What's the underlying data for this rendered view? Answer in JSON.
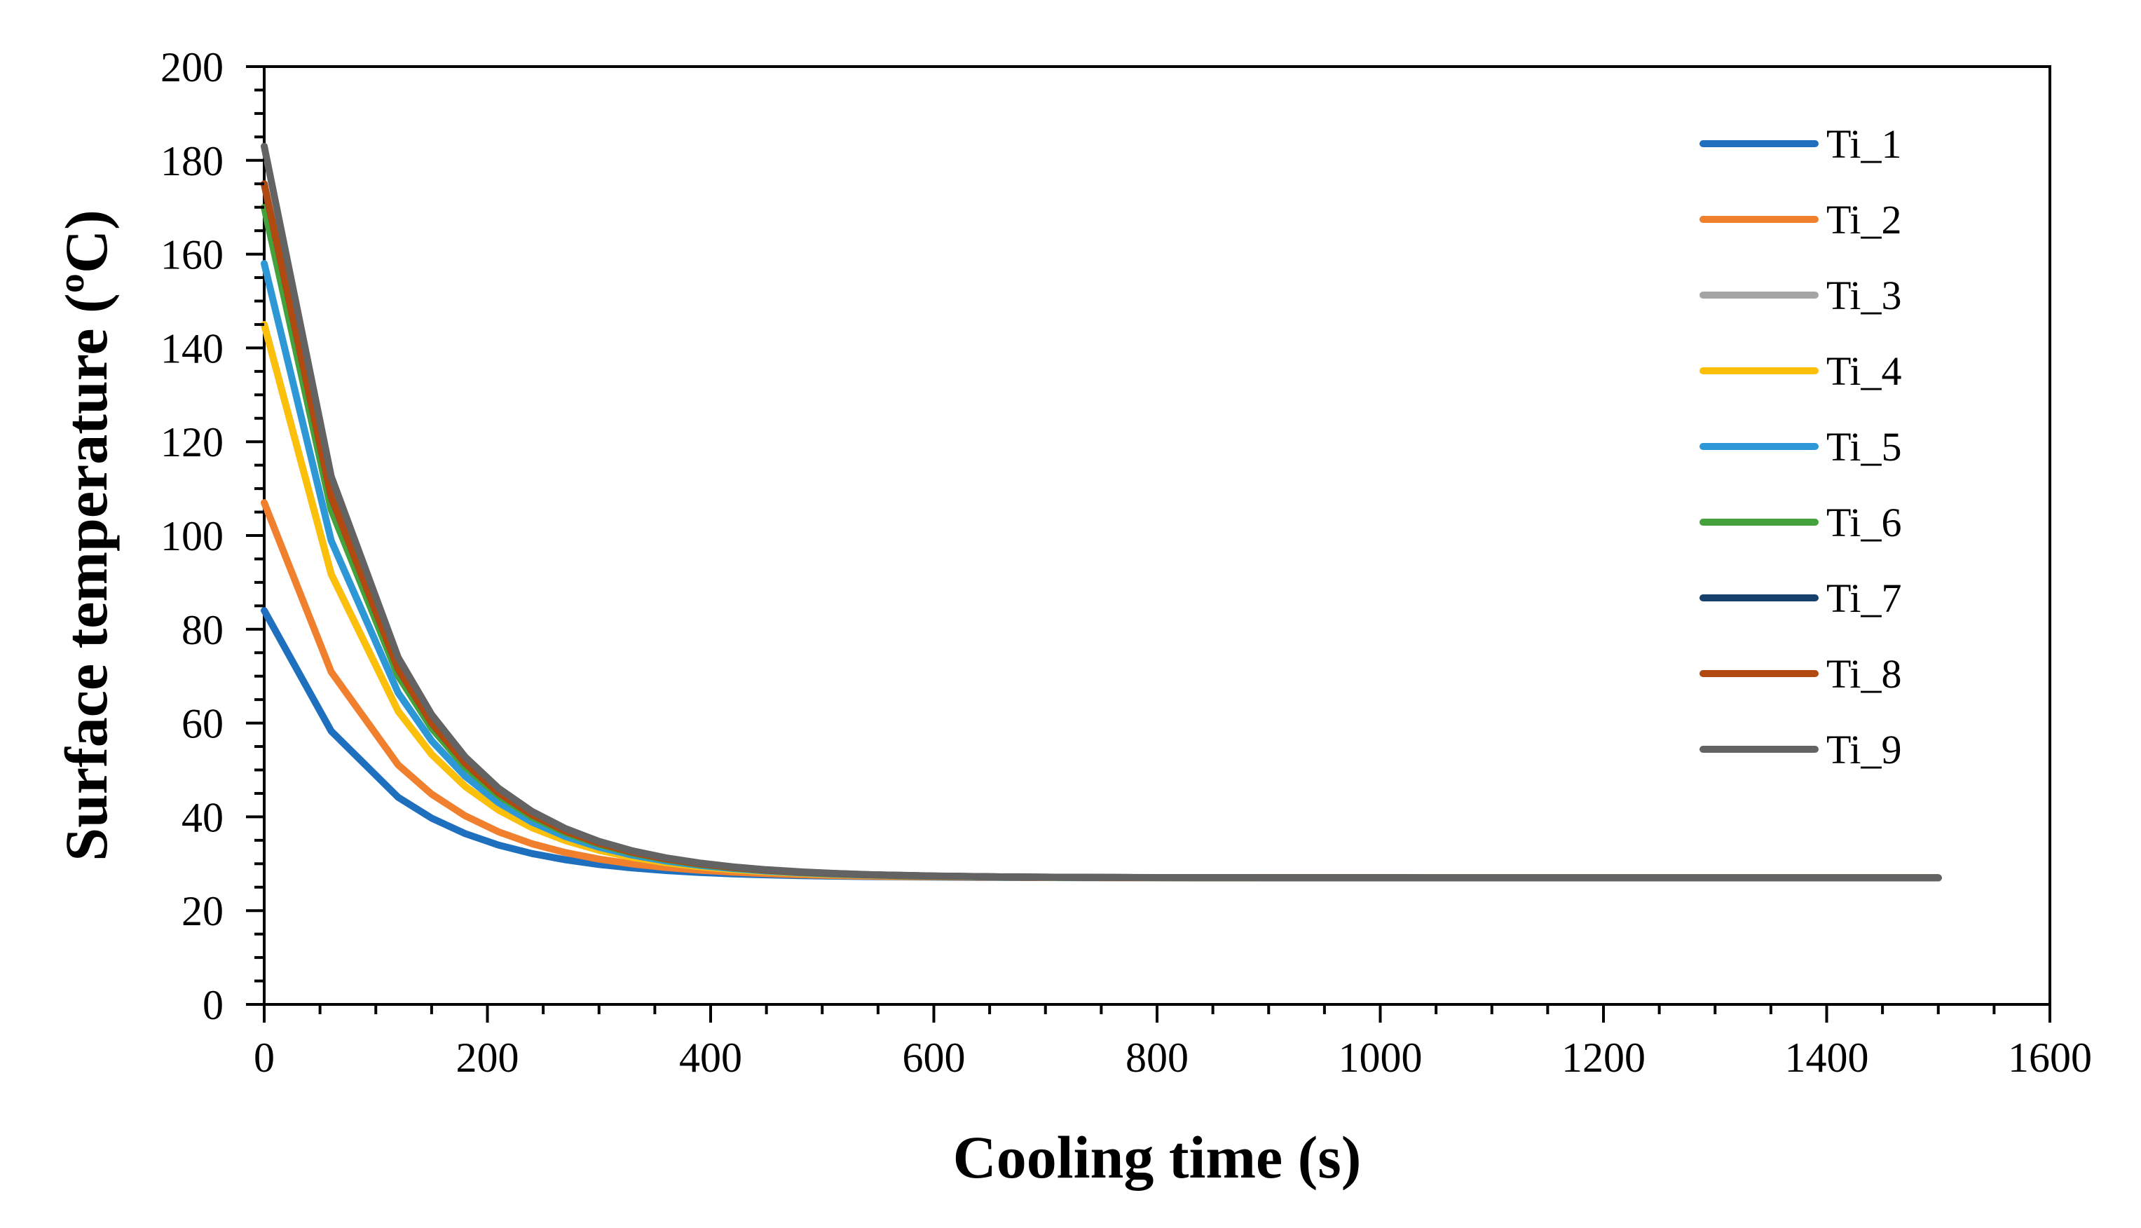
{
  "chart_data": {
    "type": "line",
    "title": "",
    "xlabel": "Cooling time (s)",
    "ylabel": "Surface temperature (ºC)",
    "xlim": [
      0,
      1600
    ],
    "ylim": [
      0,
      200
    ],
    "xticks": [
      0,
      200,
      400,
      600,
      800,
      1000,
      1200,
      1400,
      1600
    ],
    "yticks": [
      0,
      20,
      40,
      60,
      80,
      100,
      120,
      140,
      160,
      180,
      200
    ],
    "xtick_labels": [
      "0",
      "200",
      "400",
      "600",
      "800",
      "1000",
      "1200",
      "1400",
      "1600"
    ],
    "ytick_labels": [
      "0",
      "20",
      "40",
      "60",
      "80",
      "100",
      "120",
      "140",
      "160",
      "180",
      "200"
    ],
    "grid": false,
    "legend_position": "top-right",
    "x": [
      0,
      60,
      120,
      150,
      180,
      210,
      240,
      270,
      300,
      330,
      360,
      390,
      420,
      450,
      480,
      510,
      540,
      600,
      660,
      720,
      780,
      840,
      900,
      1000,
      1100,
      1200,
      1300,
      1400,
      1500
    ],
    "series": [
      {
        "name": "Ti_1",
        "color": "#1f6fbf",
        "T0": 84
      },
      {
        "name": "Ti_2",
        "color": "#f07f2e",
        "T0": 107
      },
      {
        "name": "Ti_3",
        "color": "#a5a5a5",
        "T0": 145
      },
      {
        "name": "Ti_4",
        "color": "#fcc00a",
        "T0": 145
      },
      {
        "name": "Ti_5",
        "color": "#2e98d6",
        "T0": 158
      },
      {
        "name": "Ti_6",
        "color": "#45a13c",
        "T0": 170
      },
      {
        "name": "Ti_7",
        "color": "#163f6b",
        "T0": 175
      },
      {
        "name": "Ti_8",
        "color": "#b04a10",
        "T0": 175
      },
      {
        "name": "Ti_9",
        "color": "#636363",
        "T0": 183
      }
    ],
    "ambient": 27,
    "decay_seconds": 100
  }
}
